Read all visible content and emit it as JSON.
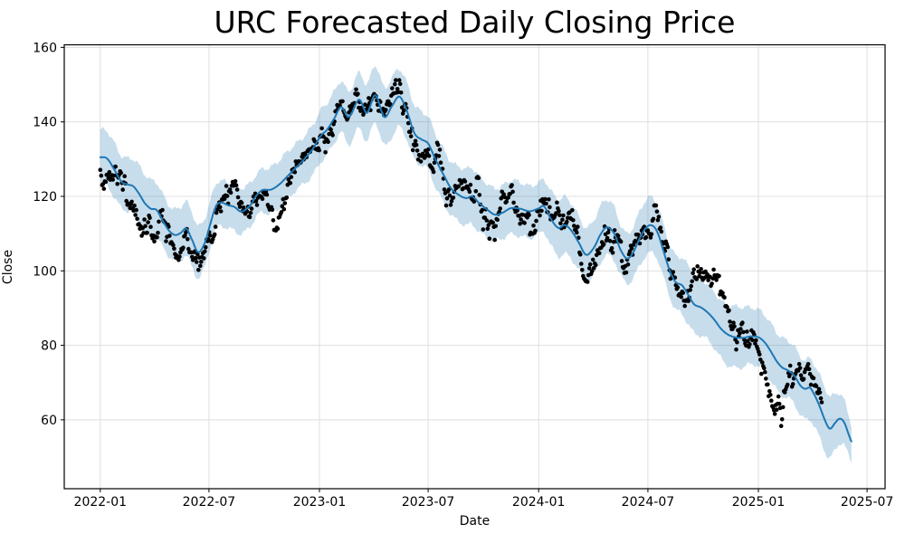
{
  "chart_data": {
    "type": "line",
    "title": "URC Forecasted Daily Closing Price",
    "xlabel": "Date",
    "ylabel": "Close",
    "xlim": [
      "2021-11-02",
      "2025-07-31"
    ],
    "ylim": [
      41.5,
      160.7
    ],
    "grid": true,
    "legend": "none",
    "x_tick_labels": [
      "2022-01",
      "2022-07",
      "2023-01",
      "2023-07",
      "2024-01",
      "2024-07",
      "2025-01",
      "2025-07"
    ],
    "y_tick_labels": [
      60,
      80,
      100,
      120,
      140,
      160
    ],
    "colors": {
      "forecast_line": "#1f77b4",
      "confidence_band": "#1f77b4",
      "confidence_band_opacity": 0.25,
      "scatter": "#000000",
      "grid": "#dcdcdc",
      "spine": "#000000"
    },
    "series": [
      {
        "name": "forecast-line",
        "kind": "line",
        "points": [
          [
            "2022-01-01",
            130.5
          ],
          [
            "2022-01-12",
            130.2
          ],
          [
            "2022-01-24",
            127.3
          ],
          [
            "2022-02-05",
            124.0
          ],
          [
            "2022-02-15",
            123.2
          ],
          [
            "2022-02-25",
            122.7
          ],
          [
            "2022-03-07",
            120.6
          ],
          [
            "2022-03-16",
            118.2
          ],
          [
            "2022-03-26",
            116.7
          ],
          [
            "2022-04-05",
            116.3
          ],
          [
            "2022-04-16",
            113.2
          ],
          [
            "2022-04-26",
            110.7
          ],
          [
            "2022-05-06",
            109.6
          ],
          [
            "2022-05-16",
            110.3
          ],
          [
            "2022-05-24",
            111.4
          ],
          [
            "2022-06-02",
            108.6
          ],
          [
            "2022-06-13",
            105.0
          ],
          [
            "2022-06-24",
            107.5
          ],
          [
            "2022-07-04",
            113.0
          ],
          [
            "2022-07-13",
            117.5
          ],
          [
            "2022-07-22",
            118.3
          ],
          [
            "2022-08-02",
            117.6
          ],
          [
            "2022-08-12",
            117.2
          ],
          [
            "2022-08-24",
            115.9
          ],
          [
            "2022-09-08",
            117.6
          ],
          [
            "2022-09-18",
            120.2
          ],
          [
            "2022-09-28",
            121.7
          ],
          [
            "2022-10-12",
            121.8
          ],
          [
            "2022-10-26",
            123.2
          ],
          [
            "2022-11-10",
            125.6
          ],
          [
            "2022-11-24",
            127.9
          ],
          [
            "2022-12-08",
            130.2
          ],
          [
            "2022-12-22",
            133.0
          ],
          [
            "2023-01-04",
            136.4
          ],
          [
            "2023-01-13",
            137.8
          ],
          [
            "2023-01-26",
            141.0
          ],
          [
            "2023-02-06",
            144.0
          ],
          [
            "2023-02-19",
            141.3
          ],
          [
            "2023-03-08",
            146.0
          ],
          [
            "2023-03-21",
            142.4
          ],
          [
            "2023-04-04",
            147.2
          ],
          [
            "2023-04-19",
            141.3
          ],
          [
            "2023-05-02",
            144.3
          ],
          [
            "2023-05-14",
            146.8
          ],
          [
            "2023-05-26",
            143.2
          ],
          [
            "2023-06-08",
            137.0
          ],
          [
            "2023-06-20",
            135.3
          ],
          [
            "2023-07-01",
            134.2
          ],
          [
            "2023-07-12",
            130.3
          ],
          [
            "2023-07-25",
            126.3
          ],
          [
            "2023-08-08",
            122.2
          ],
          [
            "2023-08-22",
            120.3
          ],
          [
            "2023-09-03",
            119.5
          ],
          [
            "2023-09-12",
            120.0
          ],
          [
            "2023-09-24",
            118.2
          ],
          [
            "2023-10-06",
            116.6
          ],
          [
            "2023-10-20",
            115.1
          ],
          [
            "2023-11-02",
            115.6
          ],
          [
            "2023-11-15",
            116.8
          ],
          [
            "2023-12-01",
            116.7
          ],
          [
            "2023-12-17",
            116.0
          ],
          [
            "2024-01-02",
            116.8
          ],
          [
            "2024-01-10",
            117.3
          ],
          [
            "2024-01-22",
            113.8
          ],
          [
            "2024-02-03",
            111.5
          ],
          [
            "2024-02-14",
            112.3
          ],
          [
            "2024-02-26",
            110.5
          ],
          [
            "2024-03-08",
            107.5
          ],
          [
            "2024-03-20",
            104.3
          ],
          [
            "2024-04-02",
            106.2
          ],
          [
            "2024-04-14",
            110.0
          ],
          [
            "2024-04-24",
            111.7
          ],
          [
            "2024-05-06",
            110.0
          ],
          [
            "2024-05-16",
            105.8
          ],
          [
            "2024-05-27",
            103.3
          ],
          [
            "2024-06-06",
            104.8
          ],
          [
            "2024-06-17",
            108.6
          ],
          [
            "2024-06-28",
            111.6
          ],
          [
            "2024-07-08",
            112.2
          ],
          [
            "2024-07-17",
            110.3
          ],
          [
            "2024-07-27",
            105.3
          ],
          [
            "2024-08-06",
            100.2
          ],
          [
            "2024-08-16",
            97.0
          ],
          [
            "2024-08-27",
            96.1
          ],
          [
            "2024-09-06",
            93.6
          ],
          [
            "2024-09-16",
            91.0
          ],
          [
            "2024-09-27",
            90.2
          ],
          [
            "2024-10-08",
            88.9
          ],
          [
            "2024-10-19",
            87.0
          ],
          [
            "2024-10-30",
            84.6
          ],
          [
            "2024-11-10",
            83.0
          ],
          [
            "2024-11-22",
            82.2
          ],
          [
            "2024-12-06",
            82.0
          ],
          [
            "2024-12-20",
            82.4
          ],
          [
            "2025-01-02",
            82.1
          ],
          [
            "2025-01-12",
            80.7
          ],
          [
            "2025-01-22",
            78.3
          ],
          [
            "2025-02-01",
            75.6
          ],
          [
            "2025-02-10",
            74.0
          ],
          [
            "2025-02-20",
            73.2
          ],
          [
            "2025-03-02",
            71.8
          ],
          [
            "2025-03-12",
            69.2
          ],
          [
            "2025-03-20",
            68.3
          ],
          [
            "2025-03-28",
            68.6
          ],
          [
            "2025-04-06",
            66.2
          ],
          [
            "2025-04-14",
            63.2
          ],
          [
            "2025-04-22",
            59.8
          ],
          [
            "2025-04-30",
            57.6
          ],
          [
            "2025-05-08",
            59.0
          ],
          [
            "2025-05-16",
            60.3
          ],
          [
            "2025-05-24",
            59.3
          ],
          [
            "2025-06-01",
            55.9
          ],
          [
            "2025-06-05",
            54.2
          ]
        ]
      },
      {
        "name": "confidence-band",
        "kind": "band",
        "half_width_points": [
          [
            "2022-01-01",
            7.0
          ],
          [
            "2022-03-01",
            7.5
          ],
          [
            "2022-06-01",
            7.0
          ],
          [
            "2022-08-01",
            6.0
          ],
          [
            "2022-10-01",
            6.0
          ],
          [
            "2022-12-01",
            6.5
          ],
          [
            "2023-02-01",
            7.0
          ],
          [
            "2023-05-01",
            8.0
          ],
          [
            "2023-07-01",
            7.0
          ],
          [
            "2023-09-01",
            7.5
          ],
          [
            "2023-12-01",
            7.0
          ],
          [
            "2024-03-01",
            7.5
          ],
          [
            "2024-06-01",
            7.0
          ],
          [
            "2024-09-01",
            7.5
          ],
          [
            "2024-12-01",
            8.0
          ],
          [
            "2025-02-01",
            7.5
          ],
          [
            "2025-04-28",
            8.5
          ],
          [
            "2025-06-05",
            5.0
          ]
        ]
      },
      {
        "name": "actual-daily-close-scatter",
        "kind": "scatter",
        "marker_radius": 2.3,
        "start": "2022-01-01",
        "end": "2025-04-17",
        "step_days": 1.5,
        "noise": {
          "phi": 0.86,
          "sigma": 1.6,
          "seed": 11
        },
        "bias_points": [
          [
            "2022-01-01",
            -1.5
          ],
          [
            "2022-02-05",
            -1.0
          ],
          [
            "2022-03-10",
            -5.5
          ],
          [
            "2022-03-25",
            -3.0
          ],
          [
            "2022-04-15",
            -1.0
          ],
          [
            "2022-05-10",
            -2.5
          ],
          [
            "2022-06-01",
            -2.0
          ],
          [
            "2022-06-18",
            -6.0
          ],
          [
            "2022-07-12",
            0.5
          ],
          [
            "2022-08-05",
            4.0
          ],
          [
            "2022-08-25",
            -2.0
          ],
          [
            "2022-09-12",
            -1.0
          ],
          [
            "2022-10-02",
            -7.0
          ],
          [
            "2022-10-16",
            -9.5
          ],
          [
            "2022-11-01",
            -4.0
          ],
          [
            "2022-11-20",
            1.0
          ],
          [
            "2022-12-10",
            0.0
          ],
          [
            "2023-01-06",
            0.5
          ],
          [
            "2023-02-10",
            0.0
          ],
          [
            "2023-03-10",
            0.5
          ],
          [
            "2023-04-10",
            0.5
          ],
          [
            "2023-05-18",
            4.0
          ],
          [
            "2023-06-08",
            1.0
          ],
          [
            "2023-06-28",
            -4.5
          ],
          [
            "2023-07-20",
            -1.0
          ],
          [
            "2023-08-15",
            -2.0
          ],
          [
            "2023-09-10",
            -0.5
          ],
          [
            "2023-10-10",
            -2.5
          ],
          [
            "2023-11-05",
            -1.5
          ],
          [
            "2023-12-05",
            0.5
          ],
          [
            "2024-01-08",
            3.0
          ],
          [
            "2024-02-05",
            1.5
          ],
          [
            "2024-03-05",
            0.0
          ],
          [
            "2024-03-26",
            -8.0
          ],
          [
            "2024-04-15",
            -2.0
          ],
          [
            "2024-05-05",
            -0.5
          ],
          [
            "2024-06-05",
            -1.0
          ],
          [
            "2024-07-06",
            5.0
          ],
          [
            "2024-07-25",
            2.0
          ],
          [
            "2024-08-15",
            0.0
          ],
          [
            "2024-09-10",
            2.0
          ],
          [
            "2024-10-05",
            6.5
          ],
          [
            "2024-10-25",
            8.5
          ],
          [
            "2024-11-10",
            6.0
          ],
          [
            "2024-11-25",
            -1.0
          ],
          [
            "2024-12-10",
            -5.0
          ],
          [
            "2024-12-24",
            -7.0
          ],
          [
            "2025-01-10",
            -9.0
          ],
          [
            "2025-01-28",
            -13.0
          ],
          [
            "2025-02-08",
            -11.0
          ],
          [
            "2025-02-16",
            -3.0
          ],
          [
            "2025-02-24",
            1.0
          ],
          [
            "2025-03-08",
            4.0
          ],
          [
            "2025-03-20",
            4.5
          ],
          [
            "2025-04-01",
            6.0
          ],
          [
            "2025-04-10",
            6.5
          ],
          [
            "2025-04-17",
            7.5
          ]
        ]
      }
    ]
  }
}
